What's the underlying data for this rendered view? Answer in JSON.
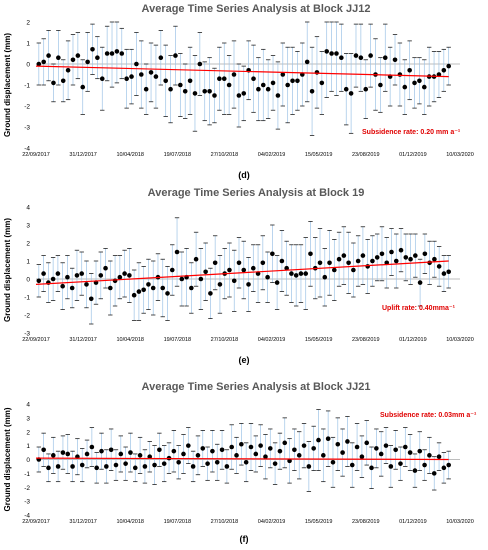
{
  "chart_data": [
    {
      "type": "scatter",
      "title": "Average Time Series Analysis at Block JJ12",
      "ylabel": "Ground displacement  (mm)",
      "ylim": [
        -4,
        2
      ],
      "yticks": [
        2,
        1,
        0,
        -1,
        -2,
        -3,
        -4
      ],
      "xlim": [
        "2017-09-22",
        "2020-03-10"
      ],
      "xtick_labels": [
        "22/09/2017",
        "31/12/2017",
        "10/04/2018",
        "19/07/2018",
        "27/10/2018",
        "04/02/2019",
        "15/05/2019",
        "23/08/2019",
        "01/12/2019",
        "10/03/2020"
      ],
      "xtick_dates": [
        "2017-09-22",
        "2017-12-31",
        "2018-04-10",
        "2018-07-19",
        "2018-10-27",
        "2019-02-04",
        "2019-05-15",
        "2019-08-23",
        "2019-12-01",
        "2020-03-10"
      ],
      "trend": {
        "x": [
          "2017-09-22",
          "2020-02-15"
        ],
        "y": [
          -0.1,
          -0.6
        ]
      },
      "rate_label": "Subsidence rate: 0.20 mm a⁻¹",
      "panel_label": "(d)",
      "series": [
        {
          "values": [
            0.0,
            0.1,
            0.4,
            -0.9,
            0.3,
            -0.8,
            -0.3,
            0.2,
            0.4,
            -1.1,
            0.1,
            0.7,
            0.3,
            -0.7,
            0.5,
            0.5,
            0.6,
            0.5,
            -0.7,
            -0.6,
            0.0,
            -0.5,
            -1.2,
            -0.4,
            -0.6,
            0.3,
            -0.8,
            -1.2,
            0.4,
            -1.0,
            -1.3,
            -0.8,
            -1.4,
            0.0,
            -1.3,
            -1.3,
            -1.5,
            -0.7,
            -0.7,
            -1.0,
            -0.5,
            -1.5,
            -1.4,
            -0.3,
            -0.7,
            -1.2,
            -1.0,
            -1.2,
            -0.9,
            -1.5,
            -0.5,
            -1.0,
            -0.8,
            -0.8,
            -0.5,
            0.1,
            -1.3,
            -0.4,
            -0.9,
            0.6,
            0.5,
            0.5,
            0.3,
            -1.2,
            -1.4,
            0.4,
            0.3,
            -1.2,
            0.4,
            -0.5,
            -1.0,
            0.3,
            -0.6,
            0.2,
            -0.5,
            -1.1,
            -0.3,
            -0.9,
            -0.8,
            -1.1,
            -0.6,
            -0.6,
            -0.5,
            -0.3,
            -0.1
          ],
          "err": [
            1.0,
            1.1,
            1.2,
            0.9,
            1.3,
            1.0,
            1.4,
            1.2,
            1.1,
            1.3,
            1.4,
            1.2,
            1.0,
            1.5,
            1.3,
            1.6,
            1.5,
            1.2,
            1.4,
            1.3,
            1.5,
            1.6,
            1.2,
            1.4,
            1.5,
            1.3,
            1.7,
            1.6,
            1.4,
            1.5,
            1.3,
            1.6,
            1.8,
            1.5,
            1.4,
            1.6,
            1.3,
            1.5,
            1.7,
            1.4,
            1.6,
            1.5,
            1.3,
            1.4,
            1.6,
            1.5,
            1.7,
            1.4,
            1.3,
            1.6,
            1.5,
            1.8,
            1.6,
            1.4,
            1.5,
            1.9,
            2.1,
            1.7,
            1.5,
            2.2,
            1.8,
            2.0,
            1.6,
            1.7,
            1.9,
            1.5,
            1.6,
            1.4,
            1.5,
            1.7,
            1.3,
            1.6,
            1.4,
            1.2,
            1.5,
            1.3,
            1.4,
            1.2,
            1.1,
            1.3,
            1.4,
            1.2,
            1.1,
            1.0,
            0.9
          ]
        }
      ]
    },
    {
      "type": "scatter",
      "title": "Average Time Series Analysis at Block 19",
      "ylabel": "Ground displacement  (mm)",
      "ylim": [
        -3,
        4
      ],
      "yticks": [
        4,
        3,
        2,
        1,
        0,
        -1,
        -2,
        -3
      ],
      "xlim": [
        "2017-09-22",
        "2020-03-10"
      ],
      "xtick_labels": [
        "22/09/2017",
        "31/12/2017",
        "10/04/2018",
        "19/07/2018",
        "27/10/2018",
        "04/02/2019",
        "15/05/2019",
        "23/08/2019",
        "01/12/2019",
        "10/03/2020"
      ],
      "xtick_dates": [
        "2017-09-22",
        "2017-12-31",
        "2018-04-10",
        "2018-07-19",
        "2018-10-27",
        "2019-02-04",
        "2019-05-15",
        "2019-08-23",
        "2019-12-01",
        "2020-03-10"
      ],
      "trend": {
        "x": [
          "2017-09-22",
          "2020-02-15"
        ],
        "y": [
          -0.3,
          1.0
        ]
      },
      "rate_label": "Uplift rate: 0.40mma⁻¹",
      "panel_label": "(e)",
      "series": [
        {
          "values": [
            -0.1,
            0.3,
            -0.2,
            0.0,
            0.3,
            -0.4,
            0.1,
            -0.5,
            0.2,
            0.3,
            -0.3,
            -1.1,
            -0.2,
            0.2,
            0.6,
            -0.5,
            -0.1,
            0.1,
            0.3,
            0.2,
            -0.9,
            -0.7,
            -0.6,
            -0.3,
            -0.5,
            0.1,
            -0.5,
            -0.8,
            0.5,
            1.5,
            0.0,
            0.1,
            -0.5,
            1.1,
            0.0,
            0.4,
            -0.8,
            0.9,
            -0.3,
            0.3,
            0.5,
            -0.1,
            0.9,
            0.5,
            -0.3,
            0.6,
            0.3,
            0.9,
            0.1,
            1.4,
            -0.2,
            1.0,
            0.6,
            0.3,
            0.2,
            0.3,
            0.3,
            1.4,
            0.6,
            0.9,
            0.1,
            0.9,
            0.5,
            1.1,
            1.3,
            0.9,
            0.5,
            1.0,
            1.3,
            0.7,
            1.0,
            1.2,
            1.4,
            0.9,
            1.5,
            1.0,
            1.6,
            1.2,
            1.1,
            1.3,
            -0.2,
            1.4,
            0.9,
            1.1,
            0.7,
            0.3,
            0.4
          ],
          "err": [
            0.9,
            1.0,
            1.1,
            1.2,
            1.0,
            1.3,
            1.2,
            1.1,
            1.4,
            1.2,
            1.3,
            1.4,
            1.2,
            1.3,
            1.1,
            1.5,
            1.4,
            1.2,
            1.3,
            1.5,
            1.4,
            1.6,
            1.3,
            1.4,
            1.5,
            1.3,
            1.6,
            1.5,
            1.4,
            1.9,
            1.5,
            1.6,
            1.4,
            1.5,
            1.7,
            1.6,
            1.4,
            1.5,
            1.6,
            1.4,
            1.5,
            1.7,
            1.4,
            1.6,
            1.5,
            1.3,
            1.6,
            1.5,
            1.4,
            1.6,
            1.5,
            1.7,
            1.5,
            1.6,
            1.7,
            1.6,
            2.0,
            1.8,
            1.7,
            1.9,
            1.6,
            1.8,
            1.7,
            1.5,
            1.6,
            1.7,
            1.5,
            1.4,
            1.6,
            1.5,
            1.4,
            1.3,
            1.5,
            1.4,
            1.3,
            1.5,
            1.2,
            1.3,
            1.4,
            1.2,
            1.3,
            1.1,
            1.2,
            1.0,
            1.1,
            1.0,
            0.9
          ]
        }
      ]
    },
    {
      "type": "scatter",
      "title": "Average Time Series Analysis at Block JJ21",
      "ylabel": "Ground displacement  (mm)",
      "ylim": [
        -4,
        4
      ],
      "yticks": [
        4,
        3,
        2,
        1,
        0,
        -1,
        -2,
        -3,
        -4
      ],
      "xlim": [
        "2017-09-22",
        "2020-03-10"
      ],
      "xtick_labels": [
        "22/09/2017",
        "31/12/2017",
        "10/04/2018",
        "19/07/2018",
        "27/10/2018",
        "04/02/2019",
        "15/05/2019",
        "23/08/2019",
        "01/12/2019",
        "10/03/2020"
      ],
      "xtick_dates": [
        "2017-09-22",
        "2017-12-31",
        "2018-04-10",
        "2018-07-19",
        "2018-10-27",
        "2019-02-04",
        "2019-05-15",
        "2019-08-23",
        "2019-12-01",
        "2020-03-10"
      ],
      "trend": {
        "x": [
          "2017-09-22",
          "2020-02-15"
        ],
        "y": [
          0.1,
          0.0
        ]
      },
      "rate_label": "Subsidence rate: 0.03mm a⁻¹",
      "panel_label": "(f)",
      "series": [
        {
          "values": [
            0.0,
            0.7,
            -0.6,
            0.3,
            -0.5,
            0.5,
            0.4,
            -0.5,
            0.2,
            -0.4,
            0.4,
            0.9,
            -0.6,
            0.6,
            -0.5,
            0.7,
            -0.4,
            0.4,
            -0.3,
            0.5,
            -0.6,
            0.3,
            -0.5,
            0.2,
            -0.4,
            0.7,
            -0.3,
            0.1,
            0.6,
            -0.2,
            0.4,
            1.0,
            -0.5,
            0.3,
            0.8,
            -0.3,
            0.6,
            -0.2,
            0.7,
            -0.5,
            0.9,
            0.3,
            1.1,
            -0.2,
            0.9,
            0.4,
            1.0,
            0.2,
            0.8,
            -0.3,
            0.6,
            1.2,
            -0.1,
            0.7,
            0.3,
            1.0,
            -0.5,
            0.8,
            1.4,
            0.3,
            1.5,
            -0.2,
            1.1,
            0.5,
            1.3,
            -0.4,
            0.9,
            0.2,
            1.2,
            -0.6,
            0.8,
            0.4,
            1.0,
            -0.5,
            0.7,
            -0.3,
            0.9,
            0.5,
            -0.8,
            0.6,
            -0.4,
            0.3,
            -1.0,
            0.2,
            -0.6,
            -0.4
          ],
          "err": [
            0.9,
            1.2,
            1.0,
            1.3,
            1.1,
            1.2,
            1.4,
            1.1,
            1.3,
            1.2,
            1.0,
            1.4,
            1.1,
            1.3,
            1.2,
            1.5,
            1.1,
            1.3,
            1.2,
            1.4,
            1.0,
            1.3,
            1.2,
            1.1,
            1.4,
            1.2,
            1.3,
            1.1,
            1.5,
            1.2,
            1.4,
            1.3,
            1.1,
            1.4,
            1.3,
            1.2,
            1.5,
            1.3,
            1.4,
            1.2,
            1.6,
            1.3,
            1.5,
            1.4,
            1.7,
            1.3,
            1.5,
            1.6,
            1.4,
            1.5,
            1.3,
            1.8,
            1.6,
            1.5,
            1.7,
            1.6,
            1.8,
            1.6,
            2.2,
            1.9,
            2.0,
            1.8,
            1.9,
            1.7,
            1.8,
            1.6,
            1.7,
            1.5,
            1.6,
            1.5,
            1.4,
            1.6,
            1.3,
            1.5,
            1.4,
            1.2,
            1.4,
            1.3,
            1.2,
            1.4,
            1.1,
            1.3,
            1.2,
            1.0,
            1.1,
            1.0
          ]
        }
      ]
    }
  ]
}
